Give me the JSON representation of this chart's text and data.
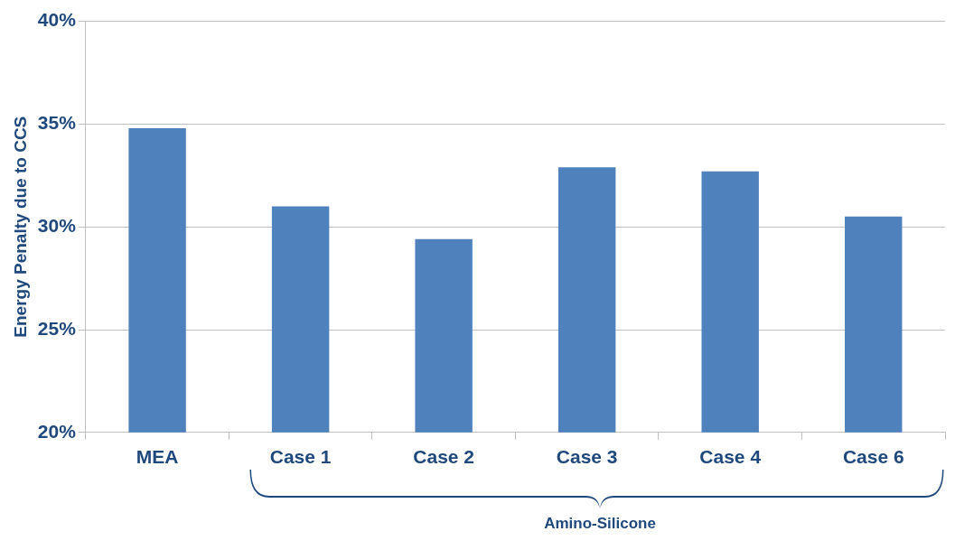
{
  "chart_data": {
    "type": "bar",
    "ylabel": "Energy Penalty due to CCS",
    "categories": [
      "MEA",
      "Case 1",
      "Case 2",
      "Case 3",
      "Case 4",
      "Case 6"
    ],
    "values": [
      34.8,
      31.0,
      29.4,
      32.9,
      32.7,
      30.5
    ],
    "color": "#4f81bd",
    "ylim": [
      20,
      40
    ],
    "yticks": [
      {
        "value": 20,
        "label": "20%"
      },
      {
        "value": 25,
        "label": "25%"
      },
      {
        "value": 30,
        "label": "30%"
      },
      {
        "value": 35,
        "label": "35%"
      },
      {
        "value": 40,
        "label": "40%"
      }
    ],
    "grid": "y",
    "legend": false,
    "annotations": [
      "Amino-Silicone"
    ]
  }
}
